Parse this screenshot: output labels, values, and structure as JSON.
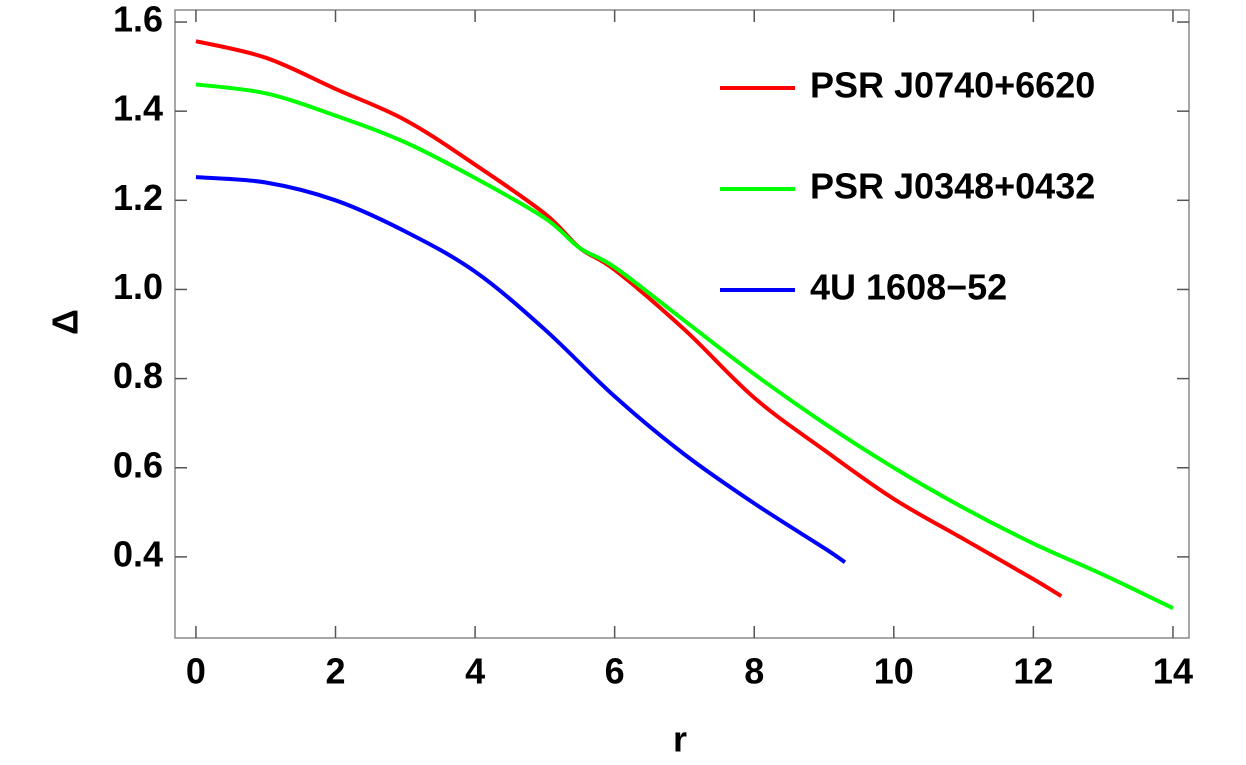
{
  "chart_data": {
    "type": "line",
    "xlabel": "r",
    "ylabel": "Δ",
    "xlim": [
      -0.3,
      14.23
    ],
    "ylim": [
      0.218,
      1.627
    ],
    "xticks": [
      0,
      2,
      4,
      6,
      8,
      10,
      12,
      14
    ],
    "yticks": [
      0.4,
      0.6,
      0.8,
      {
        "value": 1,
        "label": "1.0"
      },
      1.2,
      1.4,
      1.6
    ],
    "legend": "top-right",
    "series": [
      {
        "name": "PSR J0740+6620",
        "color": "#ff0000",
        "x": [
          0,
          1,
          2,
          3,
          4,
          5,
          5.5,
          6,
          7,
          8,
          9,
          10,
          11,
          12,
          12.4
        ],
        "values": [
          1.557,
          1.52,
          1.45,
          1.38,
          1.28,
          1.17,
          1.093,
          1.044,
          0.91,
          0.757,
          0.64,
          0.53,
          0.44,
          0.35,
          0.312
        ]
      },
      {
        "name": "PSR J0348+0432",
        "color": "#00ff00",
        "x": [
          0,
          1,
          2,
          3,
          4,
          5,
          5.5,
          6,
          7,
          8,
          9,
          10,
          11,
          12,
          13,
          14
        ],
        "values": [
          1.46,
          1.44,
          1.39,
          1.33,
          1.25,
          1.16,
          1.093,
          1.05,
          0.93,
          0.81,
          0.7,
          0.6,
          0.51,
          0.43,
          0.36,
          0.285
        ]
      },
      {
        "name": "4U 1608−52",
        "color": "#0000ff",
        "x": [
          0,
          1,
          2,
          3,
          4,
          5,
          6,
          7,
          8,
          9,
          9.3
        ],
        "values": [
          1.252,
          1.24,
          1.2,
          1.13,
          1.04,
          0.91,
          0.76,
          0.63,
          0.52,
          0.42,
          0.388
        ]
      }
    ]
  }
}
